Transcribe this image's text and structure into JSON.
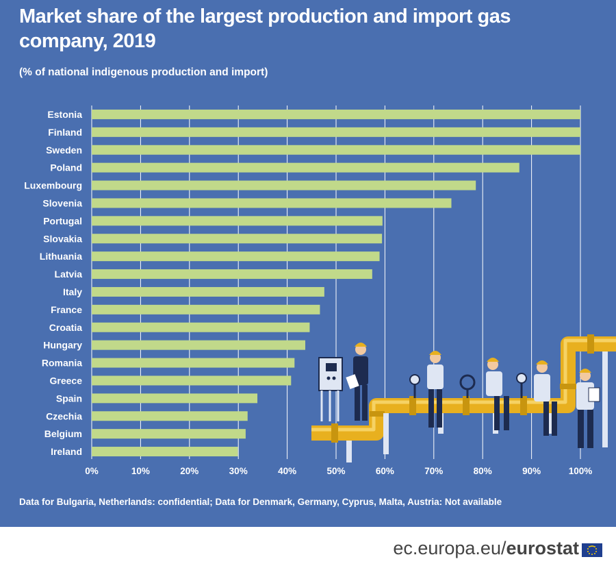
{
  "title": "Market share of the largest production and import gas company, 2019",
  "subtitle": "(% of national indigenous production and import)",
  "note": "Data for Bulgaria, Netherlands: confidential; Data for Denmark, Germany, Cyprus, Malta, Austria: Not available",
  "footer": {
    "url": "ec.europa.eu/",
    "brand": "eurostat"
  },
  "colors": {
    "background": "#4a6fb0",
    "bar": "#c1d98a",
    "text": "#ffffff",
    "pipe": "#e8b01f"
  },
  "chart_data": {
    "type": "bar",
    "orientation": "horizontal",
    "categories": [
      "Estonia",
      "Finland",
      "Sweden",
      "Poland",
      "Luxembourg",
      "Slovenia",
      "Portugal",
      "Slovakia",
      "Lithuania",
      "Latvia",
      "Italy",
      "France",
      "Croatia",
      "Hungary",
      "Romania",
      "Greece",
      "Spain",
      "Czechia",
      "Belgium",
      "Ireland"
    ],
    "values": [
      100,
      100,
      100,
      87.5,
      78.6,
      73.6,
      59.5,
      59.4,
      58.9,
      57.4,
      47.6,
      46.7,
      44.6,
      43.7,
      41.5,
      40.8,
      33.9,
      31.9,
      31.5,
      29.9
    ],
    "xlim": [
      0,
      100
    ],
    "xticks": [
      "0%",
      "10%",
      "20%",
      "30%",
      "40%",
      "50%",
      "60%",
      "70%",
      "80%",
      "90%",
      "100%"
    ],
    "grid": "vertical"
  }
}
